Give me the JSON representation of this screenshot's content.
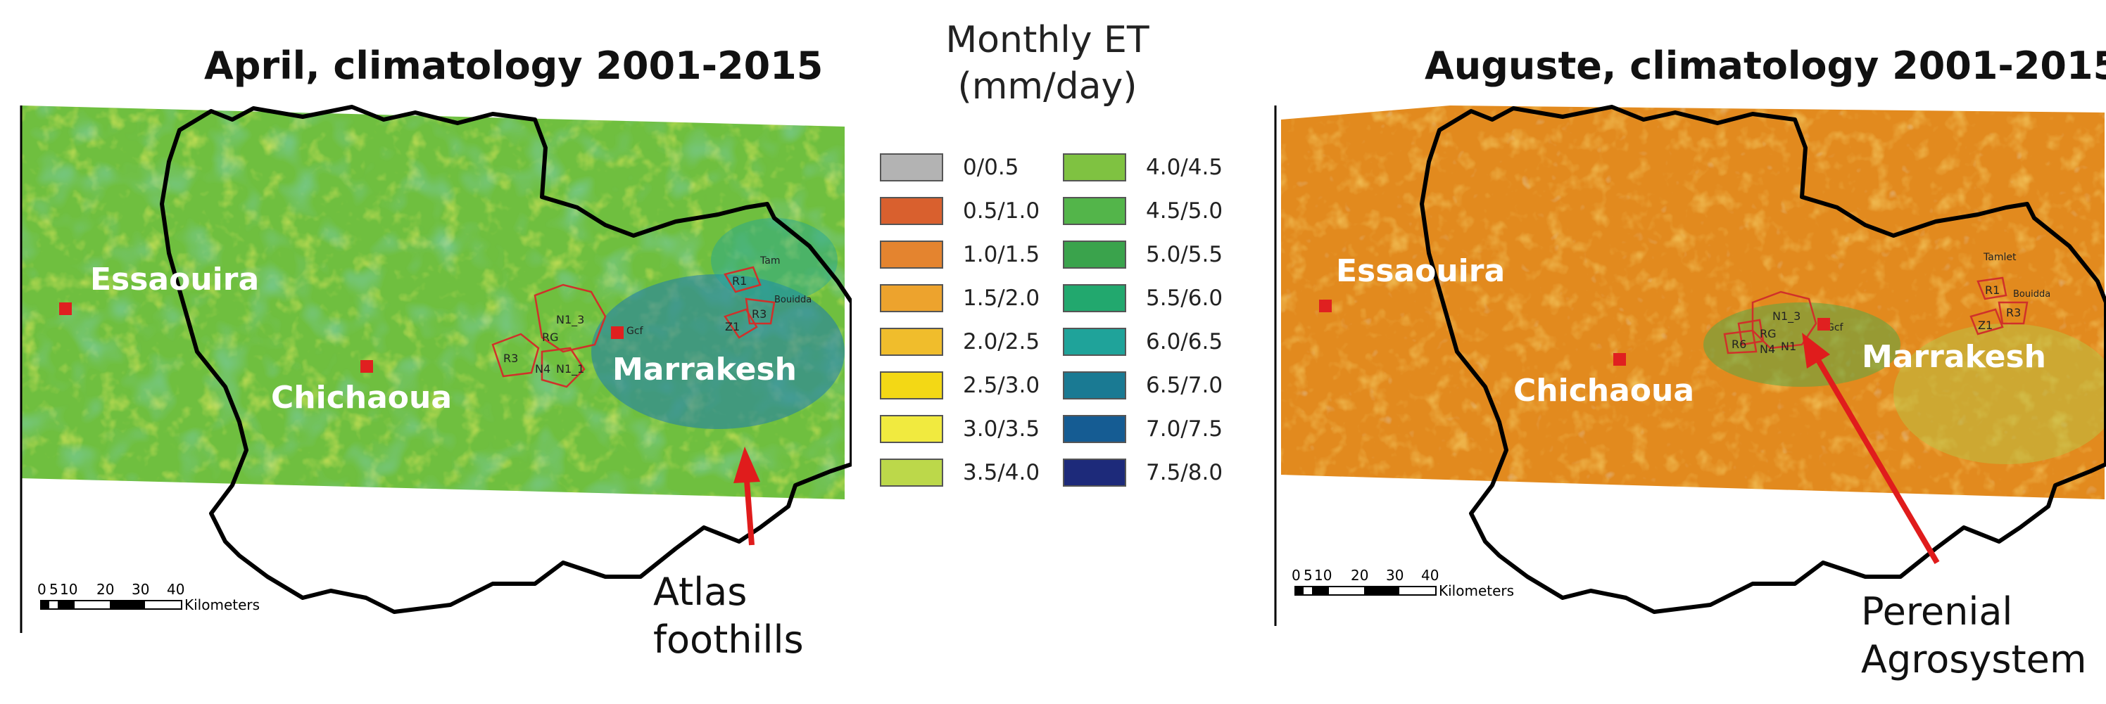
{
  "maps": {
    "left": {
      "title": "April, climatology 2001-2015",
      "cities": {
        "essaouira": "Essaouira",
        "chichaoua": "Chichaoua",
        "marrakesh": "Marrakesh"
      },
      "zones": [
        "N1_3",
        "RG",
        "R3",
        "N4",
        "N1_1",
        "Gcf",
        "Z1",
        "R3",
        "R1",
        "Tam",
        "Bouidda"
      ],
      "scale": {
        "ticks": [
          "0",
          "5",
          "10",
          "20",
          "30",
          "40"
        ],
        "unit": "Kilometers"
      },
      "annotation": [
        "Atlas",
        "foothills"
      ]
    },
    "right": {
      "title": "Auguste, climatology 2001-2015",
      "cities": {
        "essaouira": "Essaouira",
        "chichaoua": "Chichaoua",
        "marrakesh": "Marrakesh"
      },
      "zones": [
        "N1_3",
        "RG",
        "R6",
        "N4",
        "N1",
        "Gcf",
        "Z1",
        "R3",
        "R1",
        "Tamlet",
        "Bouidda"
      ],
      "scale": {
        "ticks": [
          "0",
          "5",
          "10",
          "20",
          "30",
          "40"
        ],
        "unit": "Kilometers"
      },
      "annotation": [
        "Perenial",
        "Agrosystem"
      ]
    }
  },
  "legend": {
    "title": [
      "Monthly ET",
      "(mm/day)"
    ],
    "items": [
      {
        "label": "0/0.5",
        "color": "#b3b3b3"
      },
      {
        "label": "0.5/1.0",
        "color": "#d9602e"
      },
      {
        "label": "1.0/1.5",
        "color": "#e4842f"
      },
      {
        "label": "1.5/2.0",
        "color": "#eda32d"
      },
      {
        "label": "2.0/2.5",
        "color": "#f0bd2c"
      },
      {
        "label": "2.5/3.0",
        "color": "#f3d815"
      },
      {
        "label": "3.0/3.5",
        "color": "#f1ea3f"
      },
      {
        "label": "3.5/4.0",
        "color": "#bcd84a"
      },
      {
        "label": "4.0/4.5",
        "color": "#7fc241"
      },
      {
        "label": "4.5/5.0",
        "color": "#53b54a"
      },
      {
        "label": "5.0/5.5",
        "color": "#3aa34c"
      },
      {
        "label": "5.5/6.0",
        "color": "#22a86e"
      },
      {
        "label": "6.0/6.5",
        "color": "#1fa39a"
      },
      {
        "label": "6.5/7.0",
        "color": "#1a7a93"
      },
      {
        "label": "7.0/7.5",
        "color": "#155c93"
      },
      {
        "label": "7.5/8.0",
        "color": "#1d2a7a"
      }
    ]
  },
  "colors": {
    "boundary": "#000000",
    "city_marker": "#e02020",
    "zone_outline": "#d0302a",
    "arrow": "#e01c1c",
    "april_base": "#6fbf3f",
    "august_base": "#e28a1e"
  }
}
